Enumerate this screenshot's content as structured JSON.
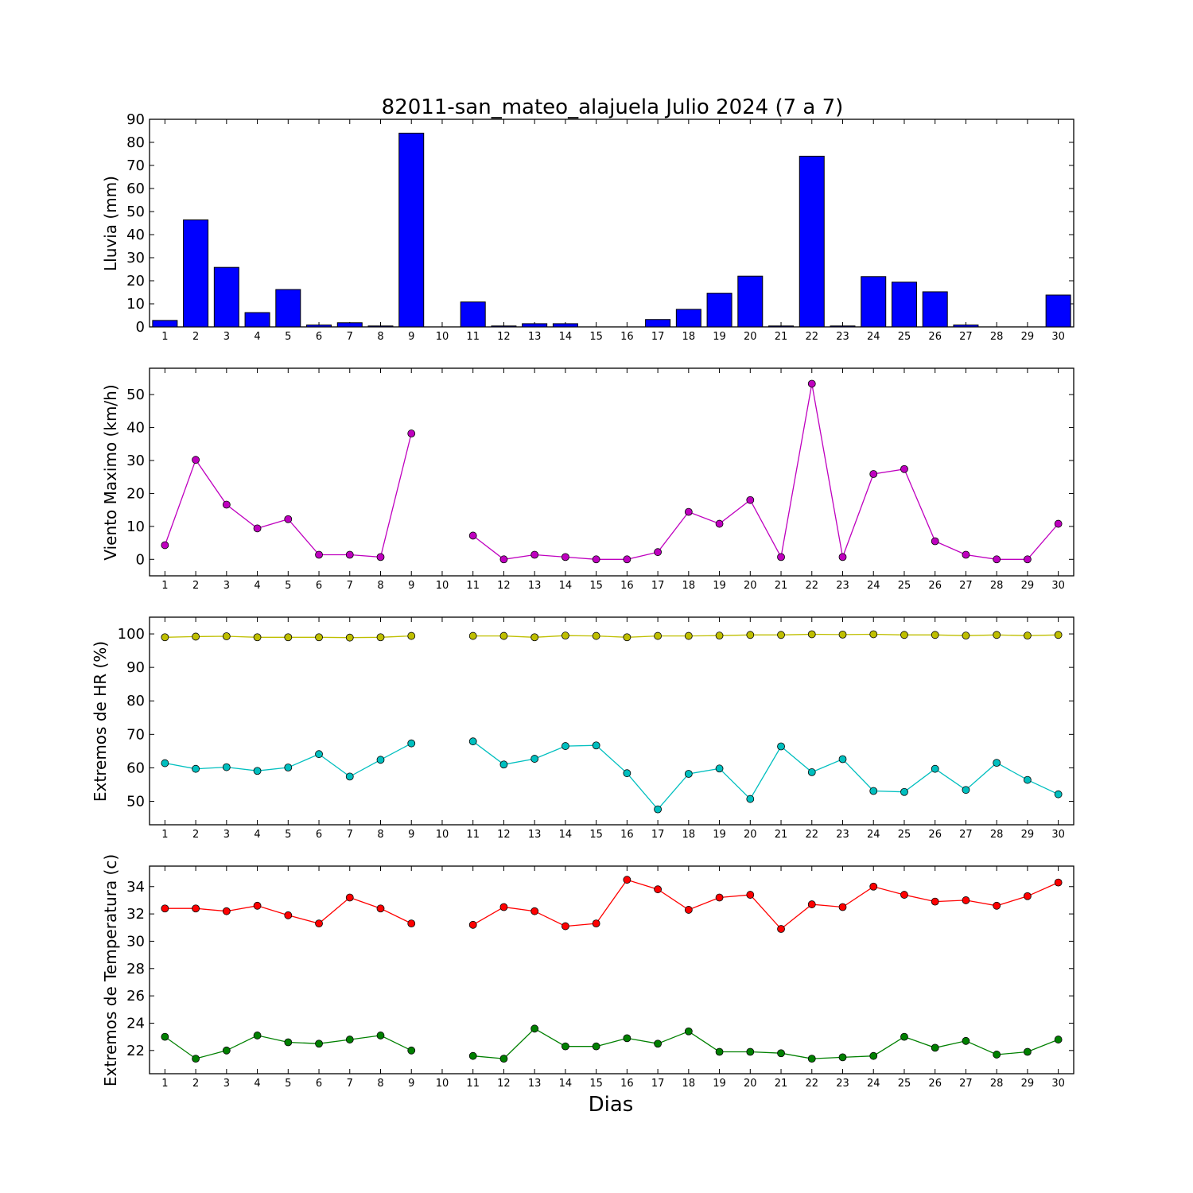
{
  "chart_data": [
    {
      "type": "bar",
      "title": "82011-san_mateo_alajuela Julio 2024  (7 a 7)",
      "ylabel": "Lluvia (mm)",
      "xlabel": "",
      "ylim": [
        0,
        90
      ],
      "yticks": [
        0,
        10,
        20,
        30,
        40,
        50,
        60,
        70,
        80,
        90
      ],
      "x": [
        1,
        2,
        3,
        4,
        5,
        6,
        7,
        8,
        9,
        10,
        11,
        12,
        13,
        14,
        15,
        16,
        17,
        18,
        19,
        20,
        21,
        22,
        23,
        24,
        25,
        26,
        27,
        28,
        29,
        30
      ],
      "series": [
        {
          "color": "#0000ff",
          "values": [
            2.8,
            46.4,
            25.8,
            6.2,
            16.2,
            0.8,
            1.8,
            0.4,
            84.0,
            null,
            10.8,
            0.4,
            1.4,
            1.4,
            0,
            0,
            3.2,
            7.6,
            14.6,
            22.0,
            0.4,
            74.0,
            0.4,
            21.8,
            19.4,
            15.2,
            0.8,
            0,
            0,
            13.8
          ]
        }
      ]
    },
    {
      "type": "line",
      "ylabel": "Viento Maximo (km/h)",
      "xlabel": "",
      "ylim": [
        -5,
        58
      ],
      "yticks": [
        0,
        10,
        20,
        30,
        40,
        50
      ],
      "x": [
        1,
        2,
        3,
        4,
        5,
        6,
        7,
        8,
        9,
        10,
        11,
        12,
        13,
        14,
        15,
        16,
        17,
        18,
        19,
        20,
        21,
        22,
        23,
        24,
        25,
        26,
        27,
        28,
        29,
        30
      ],
      "series": [
        {
          "color": "#bf00bf",
          "values": [
            4.3,
            30.2,
            16.6,
            9.4,
            12.2,
            1.4,
            1.4,
            0.7,
            38.2,
            null,
            7.2,
            0,
            1.4,
            0.7,
            0,
            0,
            2.2,
            14.4,
            10.8,
            18.0,
            0.7,
            53.3,
            0.7,
            25.9,
            27.4,
            5.5,
            1.4,
            0,
            0,
            10.8
          ]
        }
      ]
    },
    {
      "type": "line",
      "ylabel": "Extremos de HR (%)",
      "xlabel": "",
      "ylim": [
        43,
        105
      ],
      "yticks": [
        50,
        60,
        70,
        80,
        90,
        100
      ],
      "x": [
        1,
        2,
        3,
        4,
        5,
        6,
        7,
        8,
        9,
        10,
        11,
        12,
        13,
        14,
        15,
        16,
        17,
        18,
        19,
        20,
        21,
        22,
        23,
        24,
        25,
        26,
        27,
        28,
        29,
        30
      ],
      "series": [
        {
          "color": "#bfbf00",
          "values": [
            99.0,
            99.2,
            99.3,
            99.0,
            99.0,
            99.0,
            98.9,
            99.0,
            99.4,
            null,
            99.4,
            99.4,
            99.0,
            99.5,
            99.4,
            99.0,
            99.4,
            99.4,
            99.5,
            99.7,
            99.7,
            99.9,
            99.8,
            99.9,
            99.7,
            99.7,
            99.5,
            99.7,
            99.5,
            99.7
          ]
        },
        {
          "color": "#00bfbf",
          "values": [
            61.4,
            59.7,
            60.2,
            59.1,
            60.1,
            64.1,
            57.4,
            62.4,
            67.3,
            null,
            67.9,
            61.0,
            62.7,
            66.5,
            66.7,
            58.4,
            47.6,
            58.2,
            59.8,
            50.7,
            66.4,
            58.7,
            62.6,
            53.1,
            52.8,
            59.7,
            53.4,
            61.5,
            56.4,
            52.1
          ]
        }
      ]
    },
    {
      "type": "line",
      "ylabel": "Extremos de Temperatura (c)",
      "xlabel": "Dias",
      "ylim": [
        20.3,
        35.5
      ],
      "yticks": [
        22,
        24,
        26,
        28,
        30,
        32,
        34
      ],
      "x": [
        1,
        2,
        3,
        4,
        5,
        6,
        7,
        8,
        9,
        10,
        11,
        12,
        13,
        14,
        15,
        16,
        17,
        18,
        19,
        20,
        21,
        22,
        23,
        24,
        25,
        26,
        27,
        28,
        29,
        30
      ],
      "series": [
        {
          "color": "#ff0000",
          "values": [
            32.4,
            32.4,
            32.2,
            32.6,
            31.9,
            31.3,
            33.2,
            32.4,
            31.3,
            null,
            31.2,
            32.5,
            32.2,
            31.1,
            31.3,
            34.5,
            33.8,
            32.3,
            33.2,
            33.4,
            30.9,
            32.7,
            32.5,
            34.0,
            33.4,
            32.9,
            33.0,
            32.6,
            33.3,
            34.3
          ]
        },
        {
          "color": "#008000",
          "values": [
            23.0,
            21.4,
            22.0,
            23.1,
            22.6,
            22.5,
            22.8,
            23.1,
            22.0,
            null,
            21.6,
            21.4,
            23.6,
            22.3,
            22.3,
            22.9,
            22.5,
            23.4,
            21.9,
            21.9,
            21.8,
            21.4,
            21.5,
            21.6,
            23.0,
            22.2,
            22.7,
            21.7,
            21.9,
            22.8
          ]
        }
      ]
    }
  ]
}
